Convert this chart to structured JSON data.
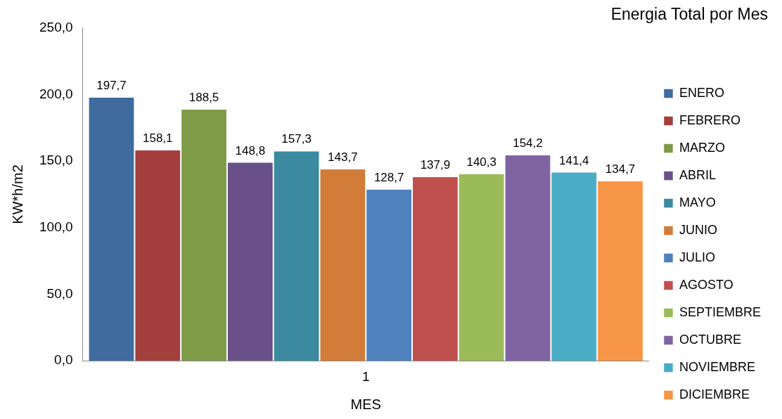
{
  "chart_data": {
    "type": "bar",
    "title": "Energia Total por Mes",
    "xlabel": "MES",
    "ylabel": "KW*h/m2",
    "categories": [
      "1"
    ],
    "ylim": [
      0,
      250
    ],
    "yticks": [
      {
        "value": 0,
        "label": "0,0"
      },
      {
        "value": 50,
        "label": "50,0"
      },
      {
        "value": 100,
        "label": "100,0"
      },
      {
        "value": 150,
        "label": "150,0"
      },
      {
        "value": 200,
        "label": "200,0"
      },
      {
        "value": 250,
        "label": "250,0"
      }
    ],
    "grid": false,
    "legend": "right",
    "series": [
      {
        "name": "ENERO",
        "color": "#3f6b9e",
        "values": [
          197.7
        ],
        "value_labels": [
          "197,7"
        ]
      },
      {
        "name": "FEBRERO",
        "color": "#a3403d",
        "values": [
          158.1
        ],
        "value_labels": [
          "158,1"
        ]
      },
      {
        "name": "MARZO",
        "color": "#7f9b47",
        "values": [
          188.5
        ],
        "value_labels": [
          "188,5"
        ]
      },
      {
        "name": "ABRIL",
        "color": "#6a5088",
        "values": [
          148.8
        ],
        "value_labels": [
          "148,8"
        ]
      },
      {
        "name": "MAYO",
        "color": "#3b8aa0",
        "values": [
          157.3
        ],
        "value_labels": [
          "157,3"
        ]
      },
      {
        "name": "JUNIO",
        "color": "#d27c39",
        "values": [
          143.7
        ],
        "value_labels": [
          "143,7"
        ]
      },
      {
        "name": "JULIO",
        "color": "#4f81bd",
        "values": [
          128.7
        ],
        "value_labels": [
          "128,7"
        ]
      },
      {
        "name": "AGOSTO",
        "color": "#c0504d",
        "values": [
          137.9
        ],
        "value_labels": [
          "137,9"
        ]
      },
      {
        "name": "SEPTIEMBRE",
        "color": "#9bbb59",
        "values": [
          140.3
        ],
        "value_labels": [
          "140,3"
        ]
      },
      {
        "name": "OCTUBRE",
        "color": "#8064a2",
        "values": [
          154.2
        ],
        "value_labels": [
          "154,2"
        ]
      },
      {
        "name": "NOVIEMBRE",
        "color": "#4bacc6",
        "values": [
          141.4
        ],
        "value_labels": [
          "141,4"
        ]
      },
      {
        "name": "DICIEMBRE",
        "color": "#f79646",
        "values": [
          134.7
        ],
        "value_labels": [
          "134,7"
        ]
      }
    ]
  }
}
